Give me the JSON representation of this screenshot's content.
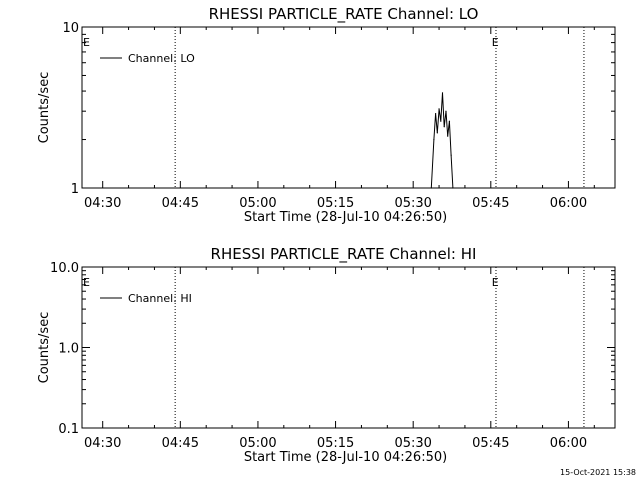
{
  "footer": {
    "timestamp": "15-Oct-2021 15:38"
  },
  "chart_data": [
    {
      "type": "line",
      "title": "RHESSI PARTICLE_RATE Channel: LO",
      "xlabel": "Start Time (28-Jul-10 04:26:50)",
      "ylabel": "Counts/sec",
      "yscale": "log",
      "ylim": [
        1,
        10
      ],
      "xlim": [
        "04:26",
        "06:09"
      ],
      "x_ticks": [
        "04:30",
        "04:45",
        "05:00",
        "05:15",
        "05:30",
        "05:45",
        "06:00"
      ],
      "y_ticks": [
        "1",
        "10"
      ],
      "grid": false,
      "legend": {
        "placement": "top-left",
        "entries": [
          "Channel: LO"
        ]
      },
      "event_markers": [
        {
          "label": "E",
          "time": "04:26"
        },
        {
          "label": "E",
          "time": "05:45"
        }
      ],
      "vertical_lines": [
        "04:44",
        "05:46",
        "06:03"
      ],
      "series": [
        {
          "name": "Channel: LO",
          "color": "#000000",
          "x": [
            "05:33:30",
            "05:34:00",
            "05:34:20",
            "05:34:40",
            "05:35:00",
            "05:35:20",
            "05:35:40",
            "05:36:00",
            "05:36:20",
            "05:36:40",
            "05:37:00",
            "05:37:20",
            "05:37:40"
          ],
          "values": [
            1,
            2.0,
            2.9,
            2.2,
            3.1,
            2.6,
            3.9,
            2.4,
            3.0,
            2.1,
            2.6,
            1.6,
            1
          ]
        }
      ]
    },
    {
      "type": "line",
      "title": "RHESSI PARTICLE_RATE Channel: HI",
      "xlabel": "Start Time (28-Jul-10 04:26:50)",
      "ylabel": "Counts/sec",
      "yscale": "log",
      "ylim": [
        0.1,
        10
      ],
      "xlim": [
        "04:26",
        "06:09"
      ],
      "x_ticks": [
        "04:30",
        "04:45",
        "05:00",
        "05:15",
        "05:30",
        "05:45",
        "06:00"
      ],
      "y_ticks": [
        "0.1",
        "1.0",
        "10.0"
      ],
      "grid": false,
      "legend": {
        "placement": "top-left",
        "entries": [
          "Channel: HI"
        ]
      },
      "event_markers": [
        {
          "label": "E",
          "time": "04:26"
        },
        {
          "label": "E",
          "time": "05:45"
        }
      ],
      "vertical_lines": [
        "04:44",
        "05:46",
        "06:03"
      ],
      "series": [
        {
          "name": "Channel: HI",
          "color": "#000000",
          "x": [],
          "values": []
        }
      ]
    }
  ]
}
